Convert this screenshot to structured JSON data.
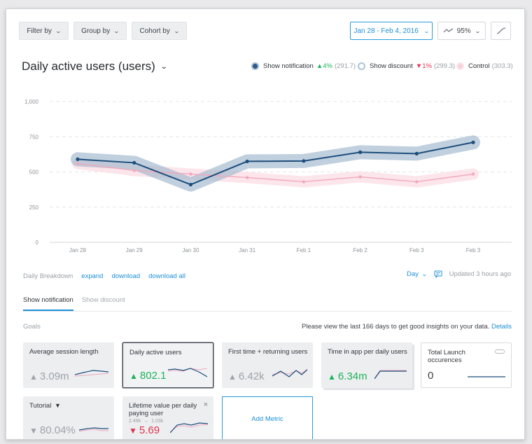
{
  "toolbar": {
    "filter_by": "Filter by",
    "group_by": "Group by",
    "cohort_by": "Cohort by",
    "date_range": "Jan 28 - Feb 4, 2016",
    "confidence": "95%"
  },
  "main": {
    "title": "Daily active users (users)"
  },
  "legend": [
    {
      "name": "Show notification",
      "change": "▲4%",
      "direction": "up",
      "value": "(291.7)",
      "color": "#2e5b8a"
    },
    {
      "name": "Show discount",
      "change": "▼1%",
      "direction": "down",
      "value": "(299.3)",
      "color": "#a8c6dc"
    },
    {
      "name": "Control",
      "change": "",
      "direction": "none",
      "value": "(303.3)",
      "color": "#f4c2cf"
    }
  ],
  "chart_data": {
    "type": "line",
    "categories": [
      "Jan 28",
      "Jan 29",
      "Jan 30",
      "Jan 31",
      "Feb 1",
      "Feb 2",
      "Feb 3",
      "Feb 3"
    ],
    "y_ticks": [
      "1,000",
      "750",
      "500",
      "250",
      "0"
    ],
    "ylim": [
      0,
      1000
    ],
    "grid": true,
    "series": [
      {
        "name": "Show notification",
        "values": [
          590,
          565,
          410,
          575,
          578,
          640,
          630,
          710
        ],
        "color": "#1d4e7c"
      },
      {
        "name": "Control",
        "values": [
          560,
          510,
          485,
          460,
          430,
          465,
          430,
          485
        ],
        "color": "#f0a9bd"
      }
    ]
  },
  "breakdown": {
    "label": "Daily Breakdown",
    "expand": "expand",
    "download": "download",
    "download_all": "download all",
    "granularity": "Day",
    "updated": "Updated 3 hours ago"
  },
  "tabs": [
    {
      "label": "Show notification",
      "active": true
    },
    {
      "label": "Show discount",
      "active": false
    }
  ],
  "goals": {
    "label": "Goals",
    "hint": "Please view the last 166 days to get good insights on your data.",
    "details": "Details"
  },
  "cards": [
    {
      "title": "Average session length",
      "value": "3.09m",
      "trend": "up",
      "tone": "gray"
    },
    {
      "title": "Daily active users",
      "value": "802.1",
      "trend": "up",
      "tone": "green"
    },
    {
      "title": "First time + returning users",
      "value": "6.42k",
      "trend": "up",
      "tone": "gray"
    },
    {
      "title": "Time in app per daily users",
      "value": "6.34m",
      "trend": "up",
      "tone": "green"
    },
    {
      "title": "Total Launch occurences",
      "value": "0",
      "trend": "none",
      "tone": "dark"
    },
    {
      "title": "Tutorial",
      "value": "80.04%",
      "trend": "down",
      "tone": "gray"
    },
    {
      "title": "Lifetime value per daily paying user",
      "sub_a": "2.49k",
      "sub_b": "1.03k",
      "value": "5.69",
      "trend": "down",
      "tone": "red"
    }
  ],
  "add_metric": "Add Metric",
  "icons": {
    "up": "▲",
    "down": "▼",
    "filter": "▼",
    "close": "×"
  }
}
